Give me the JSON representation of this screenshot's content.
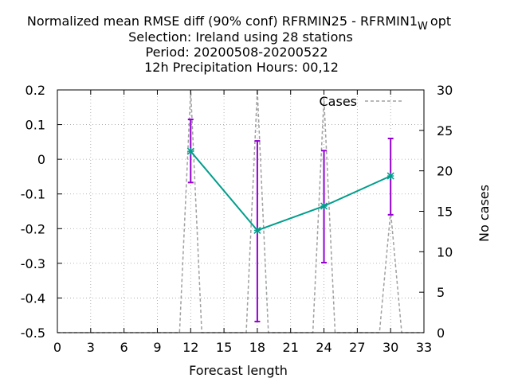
{
  "chart_data": {
    "type": "line",
    "title_lines": [
      "Normalized mean RMSE diff (90% conf) RFRMIN25 - RFRMIN1",
      "Selection: Ireland using     28 stations",
      "Period: 20200508-20200522",
      "12h Precipitation   Hours:  00,12"
    ],
    "title_suffix": {
      "subscript": "W",
      "text": "opt"
    },
    "xlabel": "Forecast length",
    "ylabel_right": "No cases",
    "xlim": [
      0,
      33
    ],
    "ylim": [
      -0.5,
      0.2
    ],
    "y2lim": [
      0,
      30
    ],
    "x_ticks": [
      "0",
      "3",
      "6",
      "9",
      "12",
      "15",
      "18",
      "21",
      "24",
      "27",
      "30",
      "33"
    ],
    "y_ticks": [
      "0.2",
      "0.1",
      "0",
      "-0.1",
      "-0.2",
      "-0.3",
      "-0.4",
      "-0.5"
    ],
    "y2_ticks": [
      "30",
      "25",
      "20",
      "15",
      "10",
      "5",
      "0"
    ],
    "grid": true,
    "legend_position": "top-right",
    "series": [
      {
        "name": "",
        "color": "#009e8c",
        "x": [
          12,
          18,
          24,
          30
        ],
        "y": [
          0.023,
          -0.205,
          -0.135,
          -0.048
        ],
        "error_low": [
          -0.067,
          -0.468,
          -0.298,
          -0.16
        ],
        "error_high": [
          0.115,
          0.053,
          0.025,
          0.06
        ],
        "error_color": "#9400d3"
      },
      {
        "name": "Cases",
        "color": "#a0a0a0",
        "dash": true,
        "axis": "right",
        "x": [
          11,
          12,
          13,
          17,
          18,
          19,
          23,
          24,
          25,
          29,
          30,
          31
        ],
        "y": [
          0,
          30,
          0,
          0,
          30,
          0,
          0,
          29,
          0,
          0,
          15,
          0
        ]
      }
    ]
  }
}
